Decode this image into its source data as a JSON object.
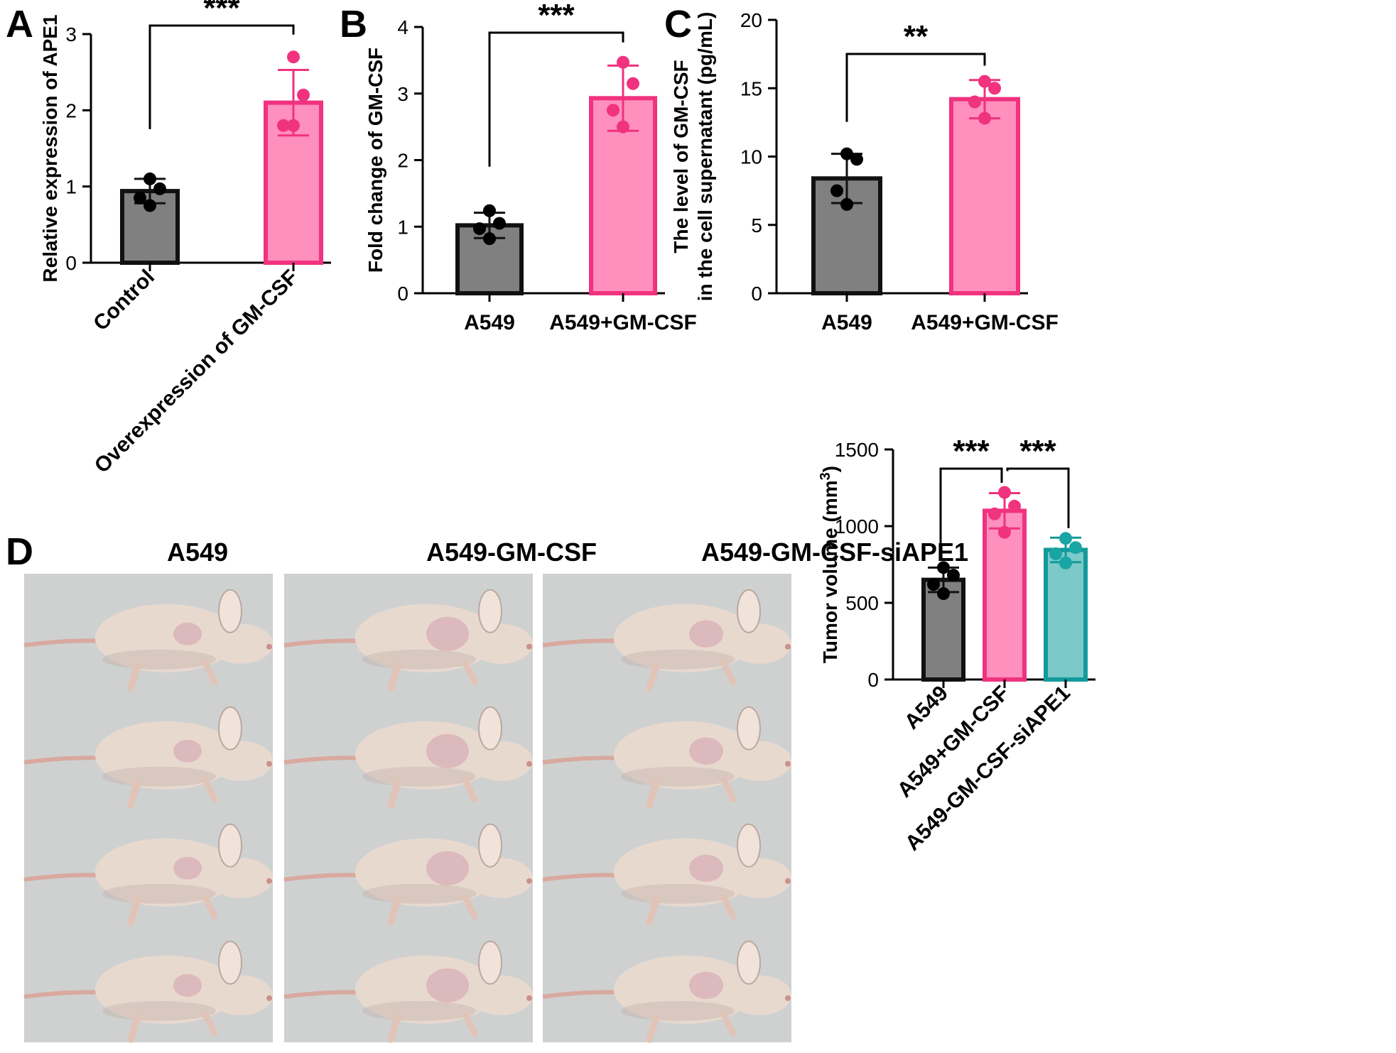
{
  "panels": [
    {
      "letter": "A"
    },
    {
      "letter": "B"
    },
    {
      "letter": "C"
    },
    {
      "letter": "D"
    }
  ],
  "colors": {
    "gray_fill": "#808080",
    "gray_edge": "#111111",
    "pink_fill": "#ff8fbd",
    "pink_edge": "#f0327f",
    "pink_point": "#f0327f",
    "teal_fill": "#7cc9c9",
    "teal_edge": "#129a9a",
    "teal_point": "#1aa5a5",
    "black_point": "#000000",
    "photo_bg": "#cfd1d1",
    "mouse_body": "#e8d9cf",
    "mouse_shadow": "#b9a8a0",
    "tumor": "#d9b3b8"
  },
  "photos": {
    "captions": [
      "A549",
      "A549-GM-CSF",
      "A549-GM-CSF-siAPE1"
    ],
    "mice_per_group": 4
  },
  "chart_data": [
    {
      "panel": "A",
      "type": "bar",
      "categories": [
        "Control",
        "Overexpression of GM-CSF"
      ],
      "category_rotation": -45,
      "ylabel": "Relative expression of APE1",
      "ylim": [
        0,
        3
      ],
      "yticks": [
        0,
        1,
        2,
        3
      ],
      "bars": [
        {
          "category": "Control",
          "mean": 0.94,
          "error": 0.16,
          "points": [
            1.1,
            0.97,
            0.85,
            0.75
          ],
          "fill": "#808080",
          "edge": "#111111",
          "point_color": "#000000"
        },
        {
          "category": "Overexpression of GM-CSF",
          "mean": 2.1,
          "error": 0.43,
          "points": [
            2.7,
            2.2,
            1.8,
            1.8
          ],
          "fill": "#ff8fbd",
          "edge": "#f0327f",
          "point_color": "#f0327f"
        }
      ],
      "significance": [
        {
          "from": 0,
          "to": 1,
          "label": "***"
        }
      ]
    },
    {
      "panel": "B",
      "type": "bar",
      "categories": [
        "A549",
        "A549+GM-CSF"
      ],
      "category_rotation": 0,
      "ylabel": "Fold change of GM-CSF",
      "ylim": [
        0,
        4
      ],
      "yticks": [
        0,
        1,
        2,
        3,
        4
      ],
      "bars": [
        {
          "category": "A549",
          "mean": 1.02,
          "error": 0.19,
          "points": [
            1.24,
            1.05,
            0.97,
            0.82
          ],
          "fill": "#808080",
          "edge": "#111111",
          "point_color": "#000000"
        },
        {
          "category": "A549+GM-CSF",
          "mean": 2.93,
          "error": 0.49,
          "points": [
            3.47,
            3.15,
            2.75,
            2.5
          ],
          "fill": "#ff8fbd",
          "edge": "#f0327f",
          "point_color": "#f0327f"
        }
      ],
      "significance": [
        {
          "from": 0,
          "to": 1,
          "label": "***"
        }
      ]
    },
    {
      "panel": "C",
      "type": "bar",
      "categories": [
        "A549",
        "A549+GM-CSF"
      ],
      "category_rotation": 0,
      "ylabel": "The level of GM-CSF\nin the  cell supernatant (pg/mL)",
      "ylim": [
        0,
        20
      ],
      "yticks": [
        0,
        5,
        10,
        15,
        20
      ],
      "bars": [
        {
          "category": "A549",
          "mean": 8.4,
          "error": 1.8,
          "points": [
            10.2,
            9.8,
            7.5,
            6.5
          ],
          "fill": "#808080",
          "edge": "#111111",
          "point_color": "#000000"
        },
        {
          "category": "A549+GM-CSF",
          "mean": 14.2,
          "error": 1.4,
          "points": [
            15.5,
            15.0,
            14.0,
            12.8
          ],
          "fill": "#ff8fbd",
          "edge": "#f0327f",
          "point_color": "#f0327f"
        }
      ],
      "significance": [
        {
          "from": 0,
          "to": 1,
          "label": "**"
        }
      ]
    },
    {
      "panel": "D",
      "type": "bar",
      "categories": [
        "A549",
        "A549+GM-CSF",
        "A549-GM-CSF-siAPE1"
      ],
      "category_rotation": -45,
      "ylabel": "Tumor volume (mm",
      "ylabel_superscript": "3",
      "ylabel_suffix": ")",
      "ylim": [
        0,
        1500
      ],
      "yticks": [
        0,
        500,
        1000,
        1500
      ],
      "bars": [
        {
          "category": "A549",
          "mean": 650,
          "error": 80,
          "points": [
            730,
            680,
            620,
            560
          ],
          "fill": "#808080",
          "edge": "#111111",
          "point_color": "#000000"
        },
        {
          "category": "A549+GM-CSF",
          "mean": 1100,
          "error": 115,
          "points": [
            1220,
            1130,
            1080,
            960
          ],
          "fill": "#ff8fbd",
          "edge": "#f0327f",
          "point_color": "#f0327f"
        },
        {
          "category": "A549-GM-CSF-siAPE1",
          "mean": 845,
          "error": 80,
          "points": [
            920,
            860,
            820,
            760
          ],
          "fill": "#7cc9c9",
          "edge": "#129a9a",
          "point_color": "#1aa5a5"
        }
      ],
      "significance": [
        {
          "from": 0,
          "to": 1,
          "label": "***"
        },
        {
          "from": 1,
          "to": 2,
          "label": "***"
        }
      ]
    }
  ]
}
